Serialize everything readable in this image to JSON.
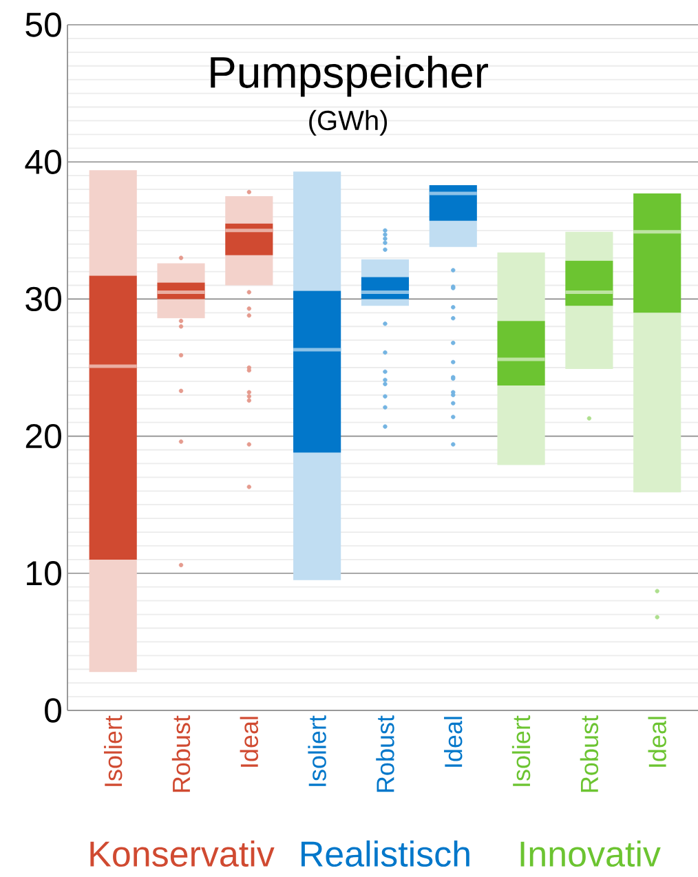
{
  "chart_data": {
    "type": "box",
    "title": "Pumpspeicher",
    "subtitle": "(GWh)",
    "categories": [
      "Isoliert",
      "Robust",
      "Ideal",
      "Isoliert",
      "Robust",
      "Ideal",
      "Isoliert",
      "Robust",
      "Ideal"
    ],
    "ylim": [
      0,
      50
    ],
    "yticks": [
      0,
      10,
      20,
      30,
      40,
      50
    ],
    "grid": "y",
    "series": [
      {
        "name": "Konservativ",
        "color": "#d04a31",
        "boxes": [
          {
            "low": 2.8,
            "q1": 11.0,
            "median": 25.1,
            "q3": 31.7,
            "high": 39.4
          },
          {
            "low": 28.6,
            "q1": 30.0,
            "median": 30.5,
            "q3": 31.2,
            "high": 32.6,
            "outliers": [
              33.0,
              28.4,
              28.0,
              25.9,
              23.3,
              19.6,
              10.6
            ]
          },
          {
            "low": 31.0,
            "q1": 33.2,
            "median": 35.0,
            "q3": 35.5,
            "high": 37.5,
            "outliers": [
              37.8,
              30.5,
              29.3,
              28.8,
              25.0,
              24.8,
              23.2,
              22.9,
              22.6,
              19.4,
              16.3
            ]
          },
          null,
          null,
          null,
          null,
          null,
          null
        ]
      },
      {
        "name": "Realistisch",
        "color": "#0277ca",
        "boxes": [
          null,
          null,
          null,
          {
            "low": 9.5,
            "q1": 18.8,
            "median": 26.3,
            "q3": 30.6,
            "high": 39.3
          },
          {
            "low": 29.5,
            "q1": 30.0,
            "median": 30.5,
            "q3": 31.6,
            "high": 32.9,
            "outliers": [
              35.0,
              34.7,
              34.4,
              34.1,
              33.6,
              28.2,
              26.1,
              24.7,
              24.1,
              23.8,
              22.9,
              22.1,
              20.7
            ]
          },
          {
            "low": 33.8,
            "q1": 35.7,
            "median": 37.7,
            "q3": 38.3,
            "high": 38.3,
            "outliers": [
              32.1,
              30.9,
              30.8,
              29.4,
              28.6,
              26.8,
              25.4,
              24.3,
              24.2,
              23.2,
              23.0,
              22.4,
              21.4,
              19.4
            ]
          },
          null,
          null,
          null
        ]
      },
      {
        "name": "Innovativ",
        "color": "#6cc431",
        "boxes": [
          null,
          null,
          null,
          null,
          null,
          null,
          {
            "low": 17.9,
            "q1": 23.7,
            "median": 25.6,
            "q3": 28.4,
            "high": 33.4
          },
          {
            "low": 24.9,
            "q1": 29.5,
            "median": 30.5,
            "q3": 32.8,
            "high": 34.9,
            "outliers": [
              21.3
            ]
          },
          {
            "low": 15.9,
            "q1": 29.0,
            "median": 34.9,
            "q3": 37.7,
            "high": 37.7,
            "outliers": [
              8.7,
              6.8
            ]
          }
        ]
      }
    ]
  }
}
